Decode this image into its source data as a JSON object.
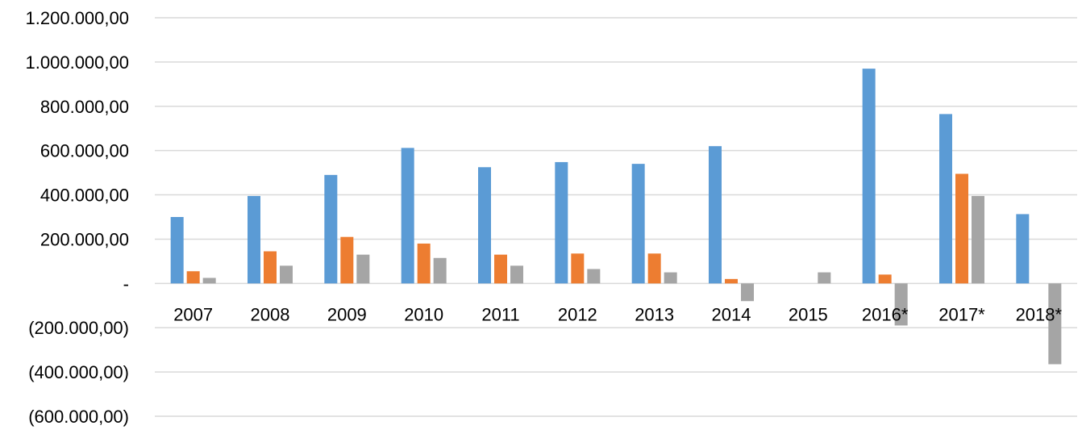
{
  "chart_data": {
    "type": "bar",
    "title": "",
    "xlabel": "",
    "ylabel": "",
    "categories": [
      "2007",
      "2008",
      "2009",
      "2010",
      "2011",
      "2012",
      "2013",
      "2014",
      "2015",
      "2016*",
      "2017*",
      "2018*"
    ],
    "series": [
      {
        "color": "#5b9bd5",
        "values": [
          300000,
          395000,
          490000,
          612000,
          525000,
          548000,
          540000,
          620000,
          0,
          970000,
          765000,
          313000
        ]
      },
      {
        "color": "#ed7d31",
        "values": [
          55000,
          145000,
          210000,
          180000,
          130000,
          135000,
          135000,
          20000,
          0,
          40000,
          495000,
          0
        ]
      },
      {
        "color": "#a5a5a5",
        "values": [
          25000,
          80000,
          130000,
          115000,
          80000,
          65000,
          50000,
          -80000,
          50000,
          -190000,
          395000,
          -365000
        ]
      }
    ],
    "ylim": [
      -600000,
      1200000
    ],
    "yticks": [
      1200000,
      1000000,
      800000,
      600000,
      400000,
      200000,
      0,
      -200000,
      -400000,
      -600000
    ],
    "ytick_labels": [
      "1.200.000,00",
      "1.000.000,00",
      "800.000,00",
      "600.000,00",
      "400.000,00",
      "200.000,00",
      "-",
      "(200.000,00)",
      "(400.000,00)",
      "(600.000,00)"
    ],
    "grid": true,
    "legend": "none"
  }
}
